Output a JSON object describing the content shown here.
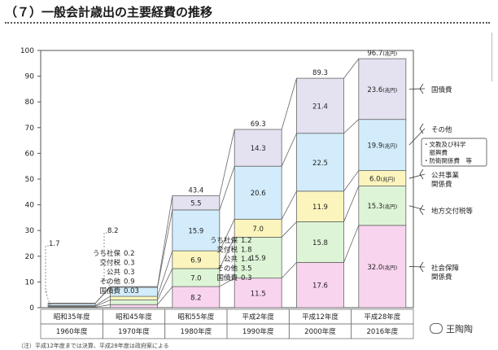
{
  "page": {
    "title": "（７）一般会計歳出の主要経費の推移",
    "watermark": "王陶陶",
    "footnote": "（注）平成12年度までは決算、平成28年度は政府案による"
  },
  "chart_data": {
    "type": "bar",
    "stacked": true,
    "ylim": [
      0,
      100
    ],
    "yticks": [
      0,
      10,
      20,
      30,
      40,
      50,
      60,
      70,
      80,
      90,
      100
    ],
    "grid": false,
    "categories": [
      {
        "label": "昭和35年度",
        "sublabel": "1960年度",
        "total": "1.7"
      },
      {
        "label": "昭和45年度",
        "sublabel": "1970年度",
        "total": "8.2"
      },
      {
        "label": "昭和55年度",
        "sublabel": "1980年度",
        "total": "43.4"
      },
      {
        "label": "平成2年度",
        "sublabel": "1990年度",
        "total": "69.3"
      },
      {
        "label": "平成12年度",
        "sublabel": "2000年度",
        "total": "89.3"
      },
      {
        "label": "平成28年度",
        "sublabel": "2016年度",
        "total": "96.7",
        "total_unit": "(兆円)"
      }
    ],
    "series": [
      {
        "name": "社会保障関係費",
        "color": "#f9d4ef",
        "values": [
          0.2,
          1.2,
          8.2,
          11.5,
          17.6,
          32.0
        ],
        "labels": [
          "",
          "",
          "8.2",
          "11.5",
          "17.6",
          "32.0(兆円)"
        ]
      },
      {
        "name": "地方交付税等",
        "color": "#ddf5d6",
        "values": [
          0.3,
          1.8,
          7.0,
          15.9,
          15.8,
          15.3
        ],
        "labels": [
          "",
          "",
          "7.0",
          "15.9",
          "15.8",
          "15.3(兆円)"
        ]
      },
      {
        "name": "公共事業関係費",
        "color": "#fbf5bd",
        "values": [
          0.3,
          1.4,
          6.9,
          7.0,
          11.9,
          6.0
        ],
        "labels": [
          "",
          "",
          "6.9",
          "7.0",
          "11.9",
          "6.0(兆円)"
        ]
      },
      {
        "name": "その他",
        "color": "#d2ecfb",
        "values": [
          0.9,
          3.5,
          15.9,
          20.6,
          22.5,
          19.9
        ],
        "labels": [
          "",
          "",
          "15.9",
          "20.6",
          "22.5",
          "19.9(兆円)"
        ]
      },
      {
        "name": "国債費",
        "color": "#e4e1f1",
        "values": [
          0.03,
          0.3,
          5.5,
          14.3,
          21.4,
          23.6
        ],
        "labels": [
          "",
          "",
          "5.5",
          "14.3",
          "21.4",
          "23.6(兆円)"
        ]
      }
    ],
    "legend": [
      {
        "lines": [
          "国債費"
        ]
      },
      {
        "lines": [
          "その他"
        ],
        "sub": [
          "・文教及び科学",
          "　振興費",
          "・防衛関係費　等"
        ]
      },
      {
        "lines": [
          "公共事業",
          "関係費"
        ]
      },
      {
        "lines": [
          "地方交付税等"
        ]
      },
      {
        "lines": [
          "社会保障",
          "関係費"
        ]
      }
    ],
    "annotations": {
      "bar1": {
        "total": "1.7",
        "items": [
          {
            "name": "うち社保",
            "value": "0.2"
          },
          {
            "name": "交付税",
            "value": "0.3"
          },
          {
            "name": "公共",
            "value": "0.3"
          },
          {
            "name": "その他",
            "value": "0.9"
          },
          {
            "name": "国債費",
            "value": "0.03"
          }
        ]
      },
      "bar2": {
        "total": "8.2",
        "items": [
          {
            "name": "うち社保",
            "value": "1.2"
          },
          {
            "name": "交付税",
            "value": "1.8"
          },
          {
            "name": "公共",
            "value": "1.4"
          },
          {
            "name": "その他",
            "value": "3.5"
          },
          {
            "name": "国債費",
            "value": "0.3"
          }
        ]
      }
    }
  }
}
